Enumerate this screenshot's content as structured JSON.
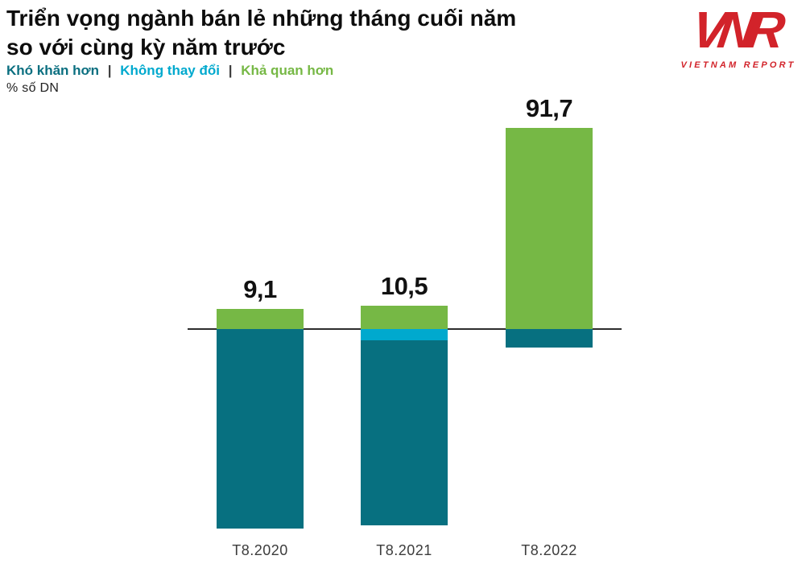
{
  "title": {
    "line1": "Triển vọng ngành bán lẻ những tháng cuối năm",
    "line2": "so với cùng kỳ năm trước"
  },
  "legend": {
    "separator": "|",
    "items": [
      {
        "label": "Khó khăn hơn",
        "color": "#0B6F80"
      },
      {
        "label": "Không thay đổi",
        "color": "#00A9CE"
      },
      {
        "label": "Khả quan hơn",
        "color": "#76B845"
      }
    ]
  },
  "unit_label": "% số DN",
  "logo": {
    "monogram": "VNR",
    "text": "VIETNAM REPORT",
    "color": "#D2232A"
  },
  "chart_data": {
    "type": "bar",
    "variant": "diverging-stacked-column",
    "title": "Triển vọng ngành bán lẻ những tháng cuối năm so với cùng kỳ năm trước",
    "ylabel": "% số DN",
    "grid": false,
    "legend_position": "top-left",
    "axis_line_color": "#2e2e2e",
    "baseline": 0,
    "categories": [
      "T8.2020",
      "T8.2021",
      "T8.2022"
    ],
    "series": [
      {
        "name": "Khả quan hơn",
        "color": "#76B845",
        "direction": "up",
        "values": [
          9.1,
          10.5,
          91.7
        ],
        "value_labels": [
          "9,1",
          "10,5",
          "91,7"
        ]
      },
      {
        "name": "Không thay đổi",
        "color": "#00A9CE",
        "direction": "down",
        "values": [
          0,
          5.3,
          0
        ],
        "value_labels": [
          null,
          null,
          null
        ]
      },
      {
        "name": "Khó khăn hơn",
        "color": "#077080",
        "direction": "down",
        "values": [
          90.9,
          84.2,
          8.3
        ],
        "value_labels": [
          null,
          null,
          null
        ]
      }
    ]
  }
}
